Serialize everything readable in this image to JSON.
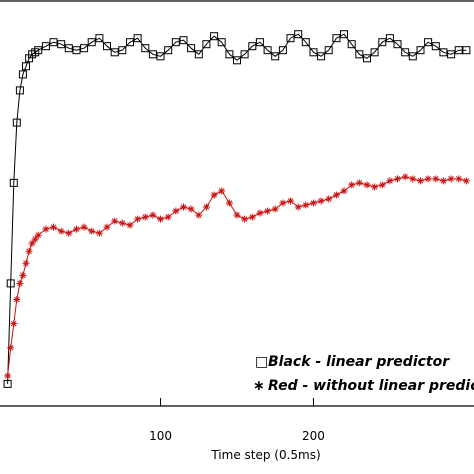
{
  "chart_data": {
    "type": "line",
    "xlabel": "Time step (0.5ms)",
    "ylabel": "",
    "xlim": [
      -5,
      305
    ],
    "ylim": [
      0,
      1
    ],
    "x_ticks": [
      100,
      200
    ],
    "grid": false,
    "legend_position": "bottom-right",
    "series": [
      {
        "name": "Black - linear predictor",
        "color": "#000000",
        "marker": "square",
        "x": [
          0,
          2,
          4,
          6,
          8,
          10,
          12,
          14,
          16,
          18,
          20,
          25,
          30,
          35,
          40,
          45,
          50,
          55,
          60,
          65,
          70,
          75,
          80,
          85,
          90,
          95,
          100,
          105,
          110,
          115,
          120,
          125,
          130,
          135,
          140,
          145,
          150,
          155,
          160,
          165,
          170,
          175,
          180,
          185,
          190,
          195,
          200,
          205,
          210,
          215,
          220,
          225,
          230,
          235,
          240,
          245,
          250,
          255,
          260,
          265,
          270,
          275,
          280,
          285,
          290,
          295,
          300
        ],
        "values": [
          0.05,
          0.3,
          0.55,
          0.7,
          0.78,
          0.82,
          0.84,
          0.86,
          0.87,
          0.875,
          0.88,
          0.89,
          0.9,
          0.895,
          0.885,
          0.88,
          0.885,
          0.9,
          0.91,
          0.89,
          0.875,
          0.88,
          0.9,
          0.91,
          0.885,
          0.87,
          0.865,
          0.88,
          0.9,
          0.905,
          0.885,
          0.87,
          0.895,
          0.915,
          0.9,
          0.87,
          0.855,
          0.87,
          0.89,
          0.9,
          0.88,
          0.865,
          0.88,
          0.91,
          0.92,
          0.9,
          0.875,
          0.865,
          0.88,
          0.91,
          0.92,
          0.895,
          0.87,
          0.86,
          0.875,
          0.9,
          0.91,
          0.895,
          0.875,
          0.865,
          0.88,
          0.9,
          0.89,
          0.875,
          0.87,
          0.88,
          0.88
        ]
      },
      {
        "name": "Red - without linear predictor",
        "color": "#cc1111",
        "marker": "asterisk",
        "x": [
          0,
          2,
          4,
          6,
          8,
          10,
          12,
          14,
          16,
          18,
          20,
          25,
          30,
          35,
          40,
          45,
          50,
          55,
          60,
          65,
          70,
          75,
          80,
          85,
          90,
          95,
          100,
          105,
          110,
          115,
          120,
          125,
          130,
          135,
          140,
          145,
          150,
          155,
          160,
          165,
          170,
          175,
          180,
          185,
          190,
          195,
          200,
          205,
          210,
          215,
          220,
          225,
          230,
          235,
          240,
          245,
          250,
          255,
          260,
          265,
          270,
          275,
          280,
          285,
          290,
          295,
          300
        ],
        "values": [
          0.07,
          0.14,
          0.2,
          0.26,
          0.3,
          0.32,
          0.35,
          0.38,
          0.4,
          0.41,
          0.42,
          0.435,
          0.44,
          0.43,
          0.425,
          0.435,
          0.44,
          0.43,
          0.425,
          0.44,
          0.455,
          0.45,
          0.445,
          0.46,
          0.465,
          0.47,
          0.46,
          0.465,
          0.48,
          0.49,
          0.485,
          0.47,
          0.49,
          0.52,
          0.53,
          0.5,
          0.47,
          0.46,
          0.465,
          0.475,
          0.48,
          0.485,
          0.5,
          0.505,
          0.49,
          0.495,
          0.5,
          0.505,
          0.51,
          0.52,
          0.53,
          0.545,
          0.55,
          0.545,
          0.54,
          0.545,
          0.555,
          0.56,
          0.565,
          0.56,
          0.555,
          0.56,
          0.56,
          0.555,
          0.56,
          0.56,
          0.555
        ]
      }
    ],
    "legend": [
      {
        "symbol": "□",
        "label": "Black - linear predictor"
      },
      {
        "symbol": "∗",
        "label": "Red - without linear predictor"
      }
    ]
  }
}
